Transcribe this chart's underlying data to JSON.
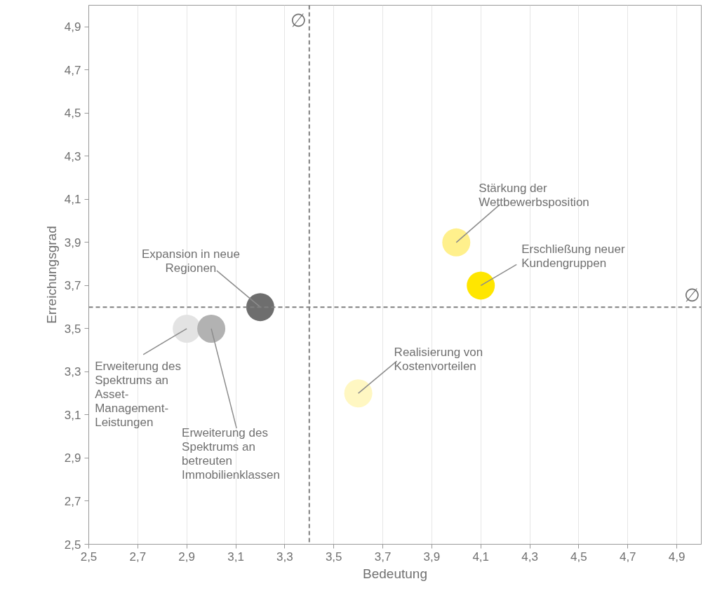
{
  "chart_data": {
    "type": "scatter",
    "xlabel": "Bedeutung",
    "ylabel": "Erreichungsgrad",
    "x": [
      3.2,
      2.9,
      3.0,
      3.6,
      4.0,
      4.1
    ],
    "values": [
      3.6,
      3.5,
      3.5,
      3.2,
      3.9,
      3.7
    ],
    "colors": [
      "#6e6e6e",
      "#e3e3e3",
      "#b2b2b2",
      "#fff7c2",
      "#fff08c",
      "#ffe600"
    ],
    "marker": "circle",
    "grid": "x",
    "xlim": [
      2.5,
      5.0
    ],
    "ylim": [
      2.5,
      5.0
    ],
    "xticks": [
      {
        "value": 2.5,
        "label": "2,5"
      },
      {
        "value": 2.7,
        "label": "2,7"
      },
      {
        "value": 2.9,
        "label": "2,9"
      },
      {
        "value": 3.1,
        "label": "3,1"
      },
      {
        "value": 3.3,
        "label": "3,3"
      },
      {
        "value": 3.5,
        "label": "3,5"
      },
      {
        "value": 3.7,
        "label": "3,7"
      },
      {
        "value": 3.9,
        "label": "3,9"
      },
      {
        "value": 4.1,
        "label": "4,1"
      },
      {
        "value": 4.3,
        "label": "4,3"
      },
      {
        "value": 4.5,
        "label": "4,5"
      },
      {
        "value": 4.7,
        "label": "4,7"
      },
      {
        "value": 4.9,
        "label": "4,9"
      }
    ],
    "yticks": [
      {
        "value": 2.5,
        "label": "2,5"
      },
      {
        "value": 2.7,
        "label": "2,7"
      },
      {
        "value": 2.9,
        "label": "2,9"
      },
      {
        "value": 3.1,
        "label": "3,1"
      },
      {
        "value": 3.3,
        "label": "3,3"
      },
      {
        "value": 3.5,
        "label": "3,5"
      },
      {
        "value": 3.7,
        "label": "3,7"
      },
      {
        "value": 3.9,
        "label": "3,9"
      },
      {
        "value": 4.1,
        "label": "4,1"
      },
      {
        "value": 4.3,
        "label": "4,3"
      },
      {
        "value": 4.5,
        "label": "4,5"
      },
      {
        "value": 4.7,
        "label": "4,7"
      },
      {
        "value": 4.9,
        "label": "4,9"
      }
    ],
    "ref_lines": [
      {
        "axis": "x",
        "value": 3.4,
        "label": "∅",
        "color": "#808080",
        "line_style": "dashed"
      },
      {
        "axis": "y",
        "value": 3.6,
        "label": "∅",
        "color": "#808080",
        "line_style": "dashed"
      }
    ],
    "annotations": [
      {
        "text": "Expansion in neue\nRegionen",
        "x": 3.2,
        "y": 3.6
      },
      {
        "text": "Erweiterung des\nSpektrums an\nAsset-\nManagement-\nLeistungen",
        "x": 2.9,
        "y": 3.5
      },
      {
        "text": "Erweiterung des\nSpektrums an\nbetreuten\nImmobilienklassen",
        "x": 3.0,
        "y": 3.5
      },
      {
        "text": "Realisierung von\nKostenvorteilen",
        "x": 3.6,
        "y": 3.2
      },
      {
        "text": "Stärkung der\nWettbewerbsposition",
        "x": 4.0,
        "y": 3.9
      },
      {
        "text": "Erschließung neuer\nKundengruppen",
        "x": 4.1,
        "y": 3.7
      }
    ]
  }
}
